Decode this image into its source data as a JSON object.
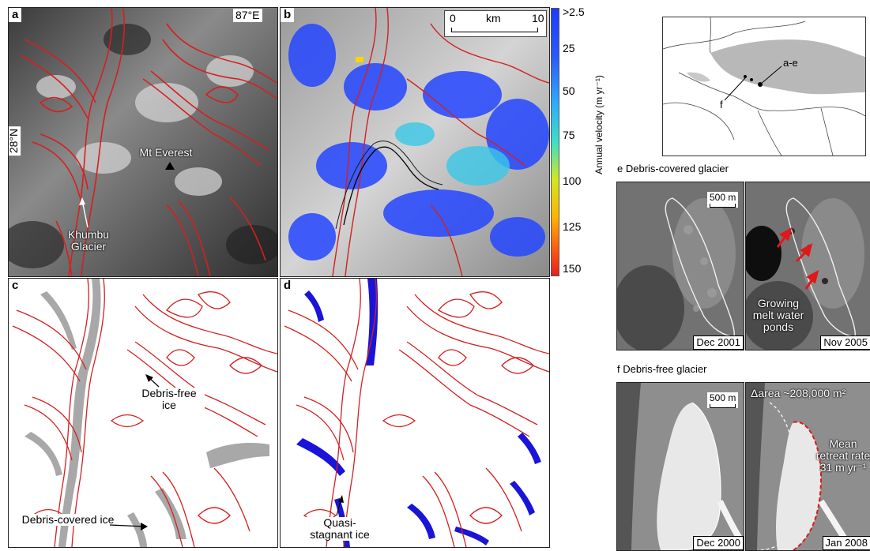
{
  "panels": {
    "a": {
      "letter": "a",
      "lon_label": "87°E",
      "lat_label": "28°N",
      "peak_label": "Mt Everest",
      "glacier_label": "Khumbu Glacier"
    },
    "b": {
      "letter": "b",
      "scale_zero": "0",
      "scale_unit": "km",
      "scale_max": "10",
      "colorbar_label": "Annual velocity (m yr⁻¹)",
      "colorbar_ticks": [
        ">2.5",
        "25",
        "50",
        "75",
        "100",
        "125",
        "150"
      ]
    },
    "c": {
      "letter": "c",
      "debris_free_label": "Debris-free ice",
      "debris_covered_label": "Debris-covered ice"
    },
    "d": {
      "letter": "d",
      "stagnant_label": "Quasi-stagnant ice"
    },
    "inset": {
      "label_ae": "a-e",
      "label_f": "f"
    },
    "e": {
      "title": "e  Debris-covered glacier",
      "scale": "500 m",
      "pond_label": "Growing melt water ponds",
      "date_left": "Dec 2001",
      "date_right": "Nov 2005"
    },
    "f": {
      "title": "f  Debris-free glacier",
      "scale": "500 m",
      "area_label": "Δarea ~208,000 m²",
      "retreat_label": "Mean retreat rate 31 m yr⁻¹",
      "date_left": "Dec 2000",
      "date_right": "Jan 2008"
    }
  },
  "colors": {
    "outline": "#d42020",
    "debris_ice": "#a8a8a8",
    "stagnant": "#1a14d8",
    "velocity_low": "#1e3cff",
    "velocity_high": "#e81e1e"
  }
}
